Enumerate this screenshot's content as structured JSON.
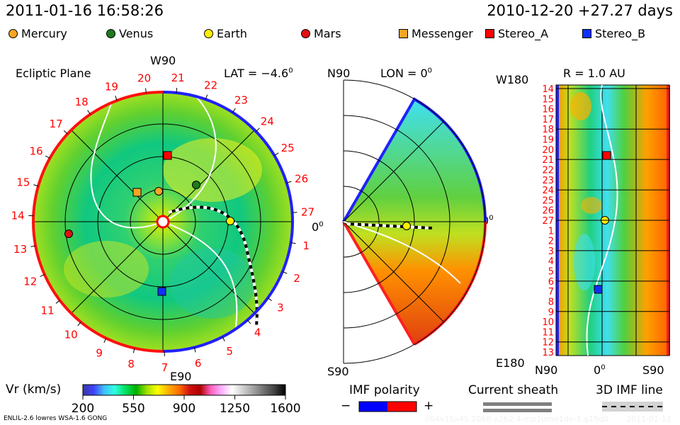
{
  "header": {
    "datetime": "2011-01-16 16:58:26",
    "reference": "2010-12-20 +27.27 days"
  },
  "legend": [
    {
      "name": "Mercury",
      "shape": "circle",
      "color": "#f5a623"
    },
    {
      "name": "Venus",
      "shape": "circle",
      "color": "#1e7a1e"
    },
    {
      "name": "Earth",
      "shape": "circle",
      "color": "#ffee00"
    },
    {
      "name": "Mars",
      "shape": "circle",
      "color": "#e01010"
    },
    {
      "name": "Messenger",
      "shape": "square",
      "color": "#f5a623"
    },
    {
      "name": "Stereo_A",
      "shape": "square",
      "color": "#ff0000"
    },
    {
      "name": "Stereo_B",
      "shape": "square",
      "color": "#1030ff"
    }
  ],
  "ecliptic": {
    "title": "Ecliptic Plane",
    "top_label": "W90",
    "bottom_label": "E90",
    "right_label": "0",
    "right_label_sup": "0",
    "lat_label": "LAT = −4.6",
    "lat_sup": "0",
    "carrington_labels": [
      "27",
      "1",
      "2",
      "3",
      "4",
      "5",
      "6",
      "7",
      "8",
      "9",
      "10",
      "11",
      "12",
      "13",
      "14",
      "15",
      "16",
      "17",
      "18",
      "19",
      "20",
      "21",
      "22",
      "23",
      "24",
      "25",
      "26"
    ]
  },
  "meridional": {
    "top_label": "N90",
    "lon_label": "LON = 0",
    "lon_sup": "0",
    "bottom_label": "S90",
    "right_label": "0",
    "right_label_sup": "0"
  },
  "radial": {
    "r_label": "R = 1.0 AU",
    "top_left": "W180",
    "bottom_left": "E180",
    "bottom_labels": [
      "N90",
      "0",
      "S90"
    ],
    "bottom_mid_sup": "0",
    "side_labels": [
      "14",
      "15",
      "16",
      "17",
      "18",
      "19",
      "20",
      "21",
      "22",
      "23",
      "24",
      "25",
      "26",
      "27",
      "1",
      "2",
      "3",
      "4",
      "5",
      "6",
      "7",
      "8",
      "9",
      "10",
      "11",
      "12",
      "13"
    ]
  },
  "colorbar": {
    "label": "Vr (km/s)",
    "ticks": [
      "200",
      "550",
      "900",
      "1250",
      "1600"
    ],
    "colors": [
      "#3a3aa0",
      "#4040ff",
      "#40c0ff",
      "#30ffe0",
      "#00e060",
      "#00b000",
      "#a0e000",
      "#ffff00",
      "#ffb000",
      "#ff7000",
      "#d01010",
      "#b00000",
      "#ff60c0",
      "#ffb0ff",
      "#ffffff",
      "#d0d0d0",
      "#a0a0a0",
      "#707070",
      "#404040",
      "#000000"
    ]
  },
  "imf_polarity": {
    "label": "IMF polarity",
    "minus": "−",
    "plus": "+",
    "neg_color": "#0000ff",
    "pos_color": "#ff0000"
  },
  "current_sheath": {
    "label": "Current sheath"
  },
  "imf_line": {
    "label": "3D IMF line"
  },
  "footer": {
    "model": "ENLIL-2.6 lowres WSA-1.6 GONG",
    "run_id": ".//64x15x45.2068-a2b2.4-mp1umn1de-1.g15q0",
    "run_date": "2011-01-12"
  }
}
